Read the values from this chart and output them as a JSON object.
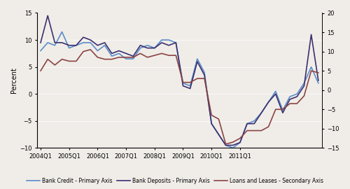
{
  "x_labels": [
    "2004Q1",
    "2005Q1",
    "2006Q1",
    "2007Q1",
    "2008Q1",
    "2009Q1",
    "2010Q1",
    "2011Q1"
  ],
  "bank_credit": [
    8.0,
    9.5,
    9.0,
    11.5,
    8.5,
    9.0,
    9.5,
    9.5,
    8.0,
    9.0,
    7.0,
    7.5,
    6.5,
    6.5,
    8.5,
    9.0,
    8.5,
    10.0,
    10.0,
    9.5,
    2.0,
    1.5,
    6.5,
    4.0,
    -5.5,
    -7.5,
    -9.5,
    -10.0,
    -9.0,
    -5.5,
    -5.0,
    -3.5,
    -1.5,
    0.5,
    -3.0,
    -0.5,
    0.0,
    2.0,
    5.0,
    2.0
  ],
  "bank_deposits": [
    9.5,
    14.5,
    9.5,
    9.5,
    9.0,
    9.0,
    10.5,
    10.0,
    9.0,
    9.5,
    7.5,
    8.0,
    7.5,
    7.0,
    9.0,
    8.5,
    8.5,
    9.5,
    9.0,
    9.5,
    1.5,
    1.0,
    6.0,
    3.5,
    -5.5,
    -7.5,
    -9.5,
    -9.5,
    -9.0,
    -5.5,
    -5.5,
    -3.5,
    -1.5,
    0.0,
    -3.5,
    -1.0,
    -0.5,
    1.5,
    11.0,
    2.5
  ],
  "loans_leases": [
    5.0,
    8.0,
    6.5,
    8.0,
    7.5,
    7.5,
    10.0,
    10.5,
    8.5,
    8.0,
    8.0,
    8.5,
    8.5,
    8.5,
    9.5,
    8.5,
    9.0,
    9.5,
    9.0,
    9.0,
    2.0,
    2.0,
    3.0,
    3.0,
    -6.5,
    -7.5,
    -14.0,
    -13.5,
    -12.5,
    -10.5,
    -10.5,
    -10.5,
    -9.5,
    -5.0,
    -5.0,
    -3.5,
    -3.5,
    -1.5,
    5.0,
    4.5
  ],
  "n_points": 40,
  "primary_ylim": [
    -10,
    15
  ],
  "secondary_ylim": [
    -15,
    20
  ],
  "primary_yticks": [
    -10,
    -5,
    0,
    5,
    10,
    15
  ],
  "secondary_yticks": [
    -15,
    -10,
    -5,
    0,
    5,
    10,
    15,
    20
  ],
  "color_bank_credit": "#5B8DC8",
  "color_bank_deposits": "#3B3070",
  "color_loans_leases": "#8B4444",
  "ylabel": "Percent",
  "legend_bank_credit": "Bank Credit - Primary Axis",
  "legend_bank_deposits": "Bank Deposits - Primary Axis",
  "legend_loans_leases": "Loans and Leases - Secondary Axis",
  "bg_color": "#F0EDE8",
  "plot_bg_color": "#F0EDE8",
  "figsize": [
    5.0,
    2.7
  ],
  "dpi": 100,
  "tick_labelsize": 6,
  "ylabel_fontsize": 7,
  "legend_fontsize": 5.5,
  "linewidth": 1.2
}
